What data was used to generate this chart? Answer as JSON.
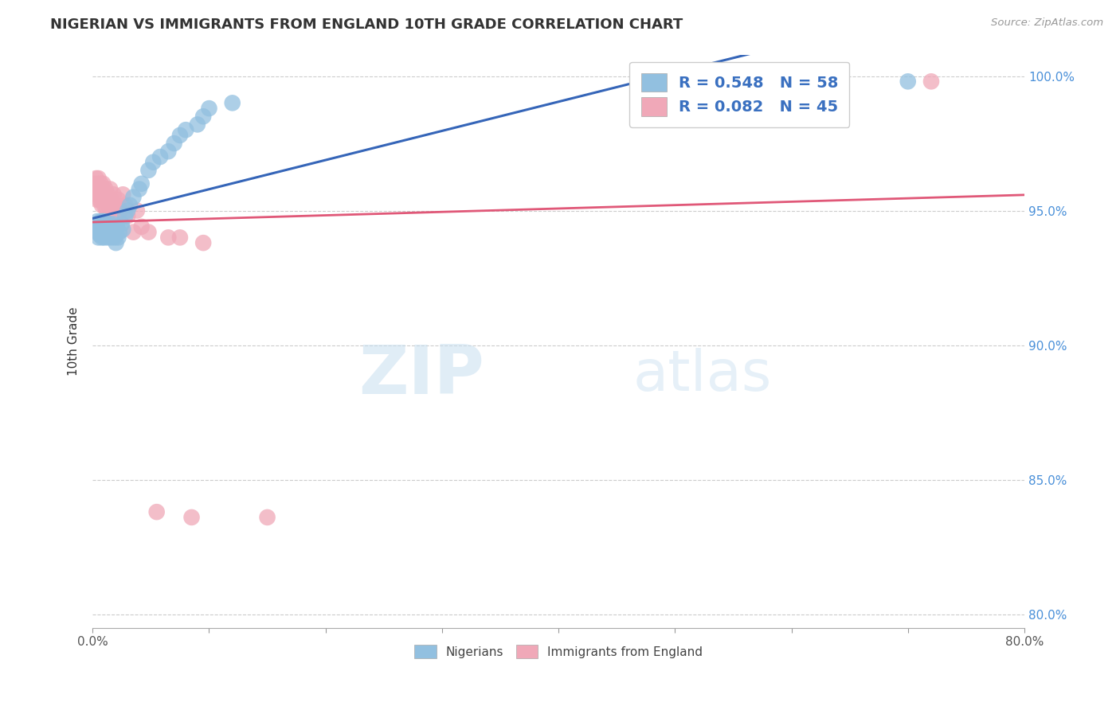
{
  "title": "NIGERIAN VS IMMIGRANTS FROM ENGLAND 10TH GRADE CORRELATION CHART",
  "source": "Source: ZipAtlas.com",
  "ylabel": "10th Grade",
  "xlim": [
    0.0,
    0.8
  ],
  "ylim": [
    0.795,
    1.008
  ],
  "xticks": [
    0.0,
    0.1,
    0.2,
    0.3,
    0.4,
    0.5,
    0.6,
    0.7,
    0.8
  ],
  "xticklabels": [
    "0.0%",
    "",
    "",
    "",
    "",
    "",
    "",
    "",
    "80.0%"
  ],
  "yticks": [
    0.8,
    0.85,
    0.9,
    0.95,
    1.0
  ],
  "yticklabels": [
    "80.0%",
    "85.0%",
    "90.0%",
    "95.0%",
    "100.0%"
  ],
  "watermark_zip": "ZIP",
  "watermark_atlas": "atlas",
  "legend_r1": "R = 0.548",
  "legend_n1": "N = 58",
  "legend_r2": "R = 0.082",
  "legend_n2": "N = 45",
  "blue_color": "#92c0e0",
  "pink_color": "#f0a8b8",
  "blue_line_color": "#3565b8",
  "pink_line_color": "#e05878",
  "nigerian_x": [
    0.002,
    0.003,
    0.004,
    0.004,
    0.005,
    0.005,
    0.006,
    0.007,
    0.007,
    0.008,
    0.008,
    0.009,
    0.009,
    0.01,
    0.01,
    0.01,
    0.011,
    0.011,
    0.012,
    0.012,
    0.013,
    0.013,
    0.014,
    0.014,
    0.015,
    0.015,
    0.016,
    0.016,
    0.017,
    0.018,
    0.018,
    0.019,
    0.019,
    0.02,
    0.02,
    0.021,
    0.022,
    0.023,
    0.025,
    0.026,
    0.028,
    0.03,
    0.032,
    0.035,
    0.04,
    0.042,
    0.048,
    0.052,
    0.058,
    0.065,
    0.07,
    0.075,
    0.08,
    0.09,
    0.095,
    0.1,
    0.12,
    0.7
  ],
  "nigerian_y": [
    0.944,
    0.943,
    0.942,
    0.946,
    0.94,
    0.944,
    0.941,
    0.943,
    0.946,
    0.94,
    0.944,
    0.942,
    0.946,
    0.94,
    0.943,
    0.946,
    0.941,
    0.944,
    0.942,
    0.945,
    0.94,
    0.944,
    0.941,
    0.944,
    0.942,
    0.945,
    0.94,
    0.943,
    0.941,
    0.942,
    0.945,
    0.94,
    0.943,
    0.938,
    0.941,
    0.944,
    0.94,
    0.942,
    0.945,
    0.943,
    0.948,
    0.95,
    0.952,
    0.955,
    0.958,
    0.96,
    0.965,
    0.968,
    0.97,
    0.972,
    0.975,
    0.978,
    0.98,
    0.982,
    0.985,
    0.988,
    0.99,
    0.998
  ],
  "england_x": [
    0.001,
    0.002,
    0.003,
    0.003,
    0.004,
    0.004,
    0.005,
    0.005,
    0.006,
    0.006,
    0.007,
    0.007,
    0.008,
    0.008,
    0.009,
    0.009,
    0.01,
    0.01,
    0.011,
    0.011,
    0.012,
    0.013,
    0.014,
    0.015,
    0.016,
    0.017,
    0.018,
    0.019,
    0.02,
    0.022,
    0.024,
    0.026,
    0.028,
    0.03,
    0.035,
    0.038,
    0.042,
    0.048,
    0.055,
    0.065,
    0.075,
    0.085,
    0.095,
    0.15,
    0.72
  ],
  "england_y": [
    0.96,
    0.956,
    0.962,
    0.958,
    0.954,
    0.96,
    0.956,
    0.962,
    0.958,
    0.954,
    0.96,
    0.956,
    0.952,
    0.958,
    0.954,
    0.96,
    0.956,
    0.952,
    0.958,
    0.954,
    0.95,
    0.956,
    0.952,
    0.958,
    0.954,
    0.95,
    0.956,
    0.952,
    0.948,
    0.954,
    0.95,
    0.956,
    0.952,
    0.948,
    0.942,
    0.95,
    0.944,
    0.942,
    0.838,
    0.94,
    0.94,
    0.836,
    0.938,
    0.836,
    0.998
  ]
}
